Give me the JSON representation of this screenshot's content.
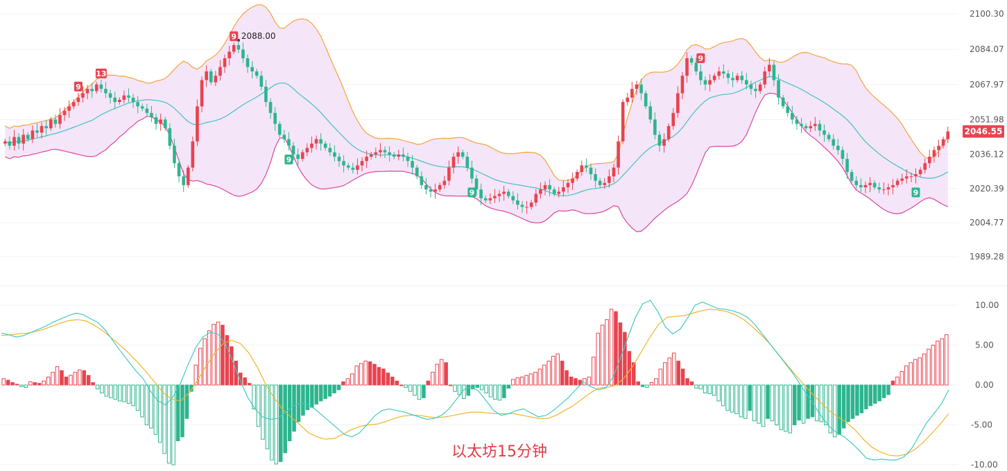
{
  "colors": {
    "up": "#e8434f",
    "down": "#2db58e",
    "band_fill": "#f3e0f8",
    "band_upper": "#f5a23b",
    "band_lower": "#d9469a",
    "band_mid": "#3fc2c0",
    "macd_dif": "#43c9c4",
    "macd_dea": "#f0b429",
    "price_tag_bg": "#e8434f",
    "axis_text": "#555555"
  },
  "labels": {
    "current_price": "2046.55",
    "peak_annotation": "2088.00",
    "watermark": "以太坊15分钟"
  },
  "chart_data": [
    {
      "type": "candlestick",
      "indicator": "Bollinger Bands",
      "ylim": [
        1989.28,
        2100.3
      ],
      "y_ticks": [
        "2100.30",
        "2084.07",
        "2067.97",
        "2051.98",
        "2036.12",
        "2020.39",
        "2004.77",
        "1989.28"
      ],
      "last_price": 2046.55,
      "candles_close": [
        2042,
        2040,
        2044,
        2041,
        2045,
        2043,
        2047,
        2046,
        2049,
        2048,
        2052,
        2050,
        2054,
        2056,
        2058,
        2060,
        2062,
        2064,
        2066,
        2065,
        2068,
        2066,
        2064,
        2062,
        2060,
        2061,
        2063,
        2062,
        2060,
        2058,
        2057,
        2055,
        2053,
        2050,
        2052,
        2048,
        2040,
        2032,
        2026,
        2022,
        2030,
        2042,
        2058,
        2070,
        2074,
        2069,
        2072,
        2076,
        2080,
        2083,
        2086,
        2084,
        2080,
        2076,
        2074,
        2072,
        2067,
        2060,
        2055,
        2050,
        2045,
        2043,
        2040,
        2036,
        2034,
        2037,
        2039,
        2041,
        2043,
        2041,
        2039,
        2037,
        2035,
        2033,
        2031,
        2030,
        2029,
        2031,
        2033,
        2035,
        2036,
        2037,
        2038,
        2037,
        2036,
        2035,
        2036,
        2035,
        2033,
        2030,
        2026,
        2022,
        2020,
        2019,
        2020,
        2022,
        2024,
        2030,
        2035,
        2037,
        2035,
        2030,
        2025,
        2020,
        2016,
        2015,
        2016,
        2017,
        2018,
        2019,
        2017,
        2015,
        2013,
        2012,
        2012,
        2014,
        2018,
        2020,
        2022,
        2020,
        2018,
        2019,
        2021,
        2023,
        2025,
        2028,
        2031,
        2030,
        2027,
        2024,
        2022,
        2023,
        2026,
        2030,
        2042,
        2060,
        2062,
        2066,
        2068,
        2064,
        2058,
        2052,
        2045,
        2040,
        2043,
        2049,
        2055,
        2064,
        2072,
        2080,
        2078,
        2074,
        2070,
        2068,
        2070,
        2072,
        2074,
        2073,
        2071,
        2070,
        2072,
        2070,
        2068,
        2066,
        2065,
        2068,
        2074,
        2077,
        2070,
        2062,
        2058,
        2055,
        2052,
        2050,
        2049,
        2048,
        2049,
        2050,
        2047,
        2045,
        2043,
        2040,
        2038,
        2034,
        2028,
        2024,
        2022,
        2021,
        2022,
        2023,
        2021,
        2020,
        2020,
        2021,
        2022,
        2024,
        2025,
        2026,
        2026,
        2027,
        2029,
        2032,
        2035,
        2038,
        2040,
        2043,
        2046.55
      ],
      "annotations": [
        {
          "text": "9",
          "kind": "sell-count"
        },
        {
          "text": "13",
          "kind": "sell-count"
        },
        {
          "text": "9",
          "kind": "sell-count"
        },
        {
          "text": "9",
          "kind": "sell-count"
        },
        {
          "text": "9",
          "kind": "buy-count"
        },
        {
          "text": "9",
          "kind": "buy-count"
        },
        {
          "text": "9",
          "kind": "buy-count"
        }
      ]
    },
    {
      "type": "bar+line",
      "indicator": "MACD",
      "ylim": [
        -10.0,
        10.0
      ],
      "y_ticks": [
        "10.00",
        "5.00",
        "0.00",
        "-5.00",
        "-10.00"
      ],
      "histogram": [
        0.8,
        0.6,
        0.3,
        0.1,
        -0.2,
        -0.3,
        0.4,
        0.3,
        0.2,
        0.5,
        1.0,
        1.6,
        2.3,
        1.8,
        1.0,
        1.2,
        1.6,
        1.9,
        1.8,
        1.2,
        0.3,
        -0.5,
        -1.0,
        -1.4,
        -1.6,
        -1.8,
        -2.0,
        -2.1,
        -2.3,
        -2.6,
        -3.2,
        -4.0,
        -5.0,
        -5.4,
        -6.2,
        -7.2,
        -8.6,
        -9.8,
        -10.0,
        -7.0,
        -6.5,
        -4.2,
        -0.8,
        2.5,
        4.6,
        5.8,
        6.8,
        7.6,
        7.9,
        7.5,
        6.2,
        4.8,
        3.0,
        1.5,
        0.9,
        0.2,
        -3.0,
        -5.2,
        -6.8,
        -8.0,
        -9.4,
        -9.9,
        -9.6,
        -8.5,
        -7.0,
        -5.8,
        -4.6,
        -3.8,
        -3.1,
        -2.8,
        -2.4,
        -2.0,
        -1.7,
        -1.4,
        -1.0,
        -0.6,
        0.4,
        0.8,
        1.4,
        2.4,
        2.7,
        3.0,
        2.9,
        2.6,
        2.2,
        2.0,
        1.5,
        1.0,
        0.5,
        0.0,
        -0.3,
        -0.8,
        -1.3,
        -1.8,
        -1.6,
        0.5,
        1.6,
        2.6,
        3.2,
        2.8,
        0.0,
        -0.8,
        -1.2,
        -1.7,
        -1.3,
        -0.5,
        -0.3,
        -0.6,
        -1.0,
        -1.5,
        -1.8,
        -1.9,
        -1.6,
        -0.4,
        0.7,
        0.9,
        1.0,
        1.2,
        1.4,
        1.6,
        2.0,
        2.5,
        3.0,
        3.6,
        3.9,
        3.0,
        1.8,
        1.0,
        0.8,
        0.6,
        0.8,
        1.0,
        3.5,
        6.5,
        7.5,
        8.2,
        9.5,
        9.2,
        7.8,
        6.6,
        4.2,
        2.8,
        0.4,
        -0.2,
        -0.3,
        0.3,
        0.8,
        2.0,
        2.8,
        3.4,
        4.0,
        3.0,
        2.0,
        0.8,
        0.4,
        -0.4,
        -0.5,
        -1.0,
        -1.1,
        -1.3,
        -2.0,
        -2.6,
        -3.2,
        -3.4,
        -3.6,
        -4.0,
        -4.2,
        -3.2,
        -4.5,
        -4.8,
        -5.2,
        -4.2,
        -4.5,
        -5.0,
        -5.6,
        -5.8,
        -6.0,
        -5.0,
        -4.4,
        -4.8,
        -4.2,
        -4.0,
        -4.5,
        -4.6,
        -5.0,
        -6.0,
        -6.5,
        -6.2,
        -5.4,
        -4.6,
        -4.2,
        -3.8,
        -3.5,
        -3.0,
        -2.6,
        -2.3,
        -2.0,
        -1.6,
        -1.2,
        0.5,
        1.0,
        1.7,
        2.4,
        2.8,
        3.2,
        3.4,
        3.9,
        4.5,
        5.0,
        5.5,
        5.8,
        6.3
      ],
      "dif": [
        6.5,
        6.3,
        6.0,
        6.2,
        6.6,
        7.0,
        7.4,
        7.9,
        8.3,
        8.7,
        9.0,
        8.8,
        8.3,
        7.8,
        6.8,
        5.5,
        4.2,
        3.0,
        1.8,
        0.8,
        -0.8,
        -2.0,
        -2.5,
        -1.5,
        0.2,
        2.5,
        4.6,
        6.0,
        6.6,
        6.4,
        5.2,
        3.0,
        0.6,
        -1.5,
        -3.0,
        -4.0,
        -4.3,
        -4.2,
        -3.5,
        -2.7,
        -2.3,
        -2.4,
        -3.0,
        -3.8,
        -4.6,
        -5.4,
        -6.2,
        -6.5,
        -6.0,
        -5.0,
        -3.9,
        -3.2,
        -3.0,
        -3.2,
        -3.4,
        -3.7,
        -4.0,
        -4.3,
        -4.2,
        -3.8,
        -3.0,
        -1.8,
        -0.6,
        -0.2,
        -0.8,
        -2.0,
        -3.2,
        -3.8,
        -3.6,
        -3.2,
        -3.0,
        -3.5,
        -4.0,
        -3.8,
        -3.2,
        -2.4,
        -1.6,
        -0.6,
        0.4,
        -0.2,
        -0.6,
        -0.4,
        1.0,
        3.4,
        6.0,
        8.5,
        10.2,
        10.6,
        9.2,
        7.3,
        6.4,
        7.0,
        8.4,
        10.0,
        10.4,
        10.0,
        9.6,
        9.5,
        9.3,
        9.0,
        8.5,
        7.6,
        6.4,
        5.2,
        4.0,
        2.8,
        1.6,
        0.2,
        -1.2,
        -2.6,
        -4.0,
        -5.2,
        -6.0,
        -6.5,
        -7.3,
        -8.2,
        -9.2,
        -9.4,
        -9.3,
        -9.4,
        -9.4,
        -9.0,
        -8.0,
        -6.4,
        -4.8,
        -3.6,
        -2.4,
        -0.6
      ],
      "dea": [
        6.2,
        6.3,
        6.4,
        6.5,
        6.7,
        7.0,
        7.4,
        7.8,
        8.1,
        8.2,
        8.0,
        7.4,
        6.7,
        5.8,
        4.9,
        3.9,
        2.8,
        1.6,
        0.3,
        -1.0,
        -1.8,
        -2.0,
        -1.0,
        0.6,
        2.4,
        4.0,
        5.2,
        5.6,
        5.2,
        4.0,
        2.2,
        0.0,
        -1.7,
        -3.1,
        -4.1,
        -5.0,
        -6.0,
        -6.5,
        -6.8,
        -6.7,
        -6.2,
        -5.6,
        -5.2,
        -5.0,
        -4.9,
        -4.6,
        -4.2,
        -3.9,
        -3.8,
        -3.8,
        -4.0,
        -4.1,
        -4.0,
        -3.8,
        -3.6,
        -3.4,
        -3.4,
        -3.5,
        -3.6,
        -3.6,
        -3.6,
        -3.8,
        -4.0,
        -4.2,
        -4.2,
        -3.8,
        -3.2,
        -2.6,
        -1.8,
        -1.0,
        -0.4,
        -0.3,
        0.0,
        0.9,
        2.4,
        4.2,
        6.0,
        7.6,
        8.5,
        8.6,
        8.7,
        9.0,
        9.3,
        9.5,
        9.4,
        9.2,
        8.8,
        8.2,
        7.3,
        6.3,
        5.2,
        3.9,
        2.6,
        1.3,
        0.1,
        -1.1,
        -2.2,
        -3.2,
        -4.0,
        -4.7,
        -5.6,
        -6.8,
        -7.8,
        -8.4,
        -8.8,
        -8.9,
        -8.7,
        -8.1,
        -7.2,
        -6.1,
        -4.9,
        -3.6
      ],
      "current_values": {
        "macd_hist": 6.3
      }
    }
  ]
}
